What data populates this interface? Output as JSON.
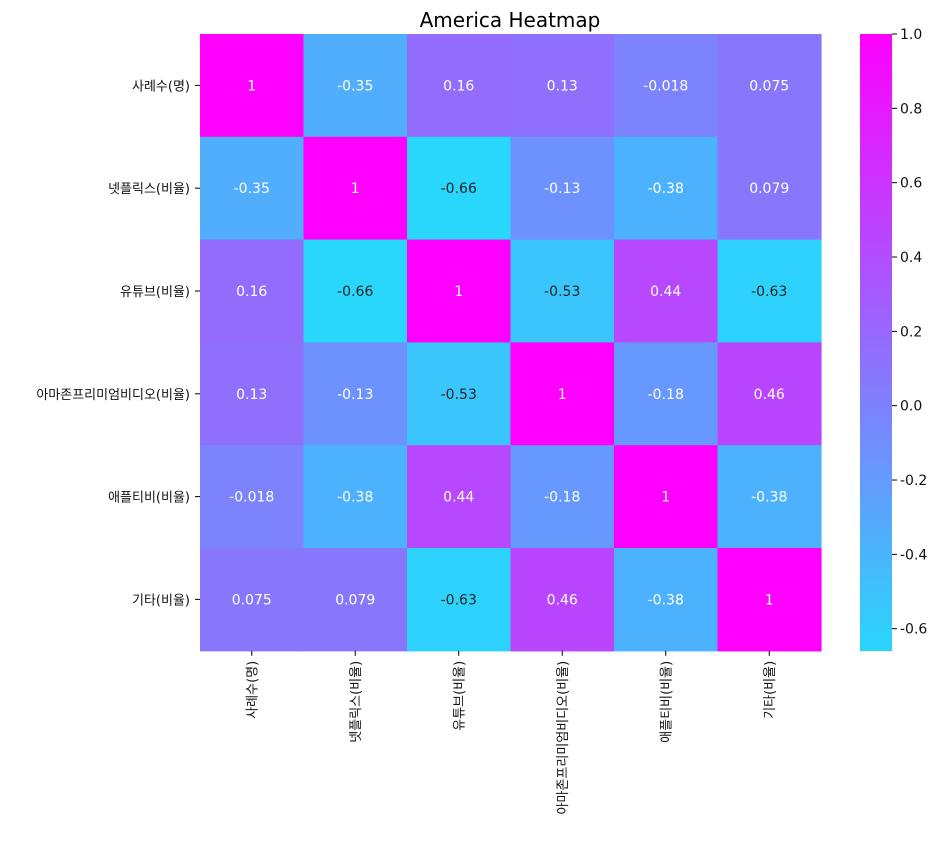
{
  "chart_data": {
    "type": "heatmap",
    "title": "America Heatmap",
    "colormap": "cool",
    "colors": {
      "low": "#29d6fc",
      "high": "#ff00ff"
    },
    "labels": [
      "사례수(명)",
      "넷플릭스(비율)",
      "유튜브(비율)",
      "아마존프리미엄비디오(비율)",
      "애플티비(비율)",
      "기타(비율)"
    ],
    "values": [
      [
        1,
        -0.35,
        0.16,
        0.13,
        -0.018,
        0.075
      ],
      [
        -0.35,
        1,
        -0.66,
        -0.13,
        -0.38,
        0.079
      ],
      [
        0.16,
        -0.66,
        1,
        -0.53,
        0.44,
        -0.63
      ],
      [
        0.13,
        -0.13,
        -0.53,
        1,
        -0.18,
        0.46
      ],
      [
        -0.018,
        -0.38,
        0.44,
        -0.18,
        1,
        -0.38
      ],
      [
        0.075,
        0.079,
        -0.63,
        0.46,
        -0.38,
        1
      ]
    ],
    "annotations": [
      [
        "1",
        "-0.35",
        "0.16",
        "0.13",
        "-0.018",
        "0.075"
      ],
      [
        "-0.35",
        "1",
        "-0.66",
        "-0.13",
        "-0.38",
        "0.079"
      ],
      [
        "0.16",
        "-0.66",
        "1",
        "-0.53",
        "0.44",
        "-0.63"
      ],
      [
        "0.13",
        "-0.13",
        "-0.53",
        "1",
        "-0.18",
        "0.46"
      ],
      [
        "-0.018",
        "-0.38",
        "0.44",
        "-0.18",
        "1",
        "-0.38"
      ],
      [
        "0.075",
        "0.079",
        "-0.63",
        "0.46",
        "-0.38",
        "1"
      ]
    ],
    "vmin": -0.66,
    "vmax": 1.0,
    "colorbar_ticks": [
      1.0,
      0.8,
      0.6,
      0.4,
      0.2,
      0.0,
      -0.2,
      -0.4,
      -0.6
    ],
    "colorbar_tick_labels": [
      "1.0",
      "0.8",
      "0.6",
      "0.4",
      "0.2",
      "0.0",
      "-0.2",
      "-0.4",
      "-0.6"
    ],
    "legend": "right"
  }
}
